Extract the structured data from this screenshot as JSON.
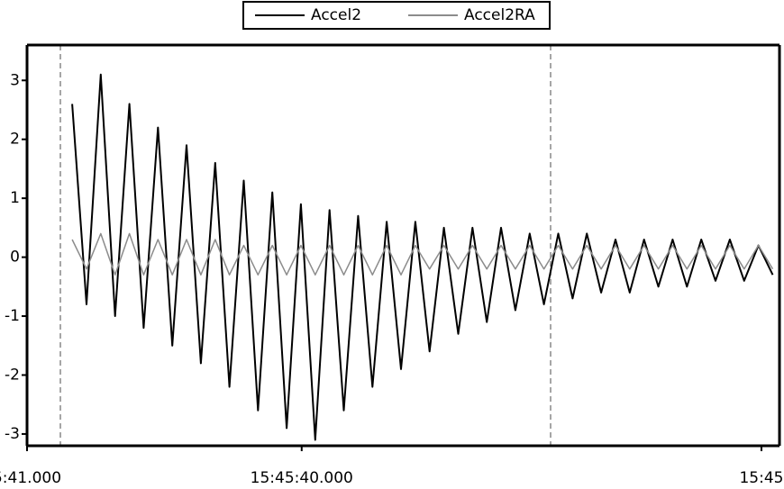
{
  "chart_data": {
    "type": "line",
    "x": [
      6,
      7.9,
      9.8,
      11.7,
      13.6,
      15.5,
      17.4,
      19.3,
      21.2,
      23.1,
      25,
      26.9,
      28.8,
      30.7,
      32.6,
      34.5,
      36.4,
      38.3,
      40.2,
      42.1,
      44,
      45.9,
      47.8,
      49.7,
      51.6,
      53.5,
      55.4,
      57.3,
      59.2,
      61.1,
      63,
      64.9,
      66.8,
      68.7,
      70.6,
      72.5,
      74.4,
      76.3,
      78.2,
      80.1,
      82,
      83.9,
      85.8,
      87.7,
      89.6,
      91.5,
      93.4,
      95.3,
      97.2,
      99.1
    ],
    "series": [
      {
        "name": "Accel2",
        "color": "#000000",
        "values": [
          2.6,
          -0.8,
          3.1,
          -1.0,
          2.6,
          -1.2,
          2.2,
          -1.5,
          1.9,
          -1.8,
          1.6,
          -2.2,
          1.3,
          -2.6,
          1.1,
          -2.9,
          0.9,
          -3.1,
          0.8,
          -2.6,
          0.7,
          -2.2,
          0.6,
          -1.9,
          0.6,
          -1.6,
          0.5,
          -1.3,
          0.5,
          -1.1,
          0.5,
          -0.9,
          0.4,
          -0.8,
          0.4,
          -0.7,
          0.4,
          -0.6,
          0.3,
          -0.6,
          0.3,
          -0.5,
          0.3,
          -0.5,
          0.3,
          -0.4,
          0.3,
          -0.4,
          0.2,
          -0.3
        ]
      },
      {
        "name": "Accel2RA",
        "color": "#8c8c8c",
        "values": [
          0.3,
          -0.2,
          0.4,
          -0.3,
          0.4,
          -0.3,
          0.3,
          -0.3,
          0.3,
          -0.3,
          0.3,
          -0.3,
          0.2,
          -0.3,
          0.2,
          -0.3,
          0.2,
          -0.3,
          0.2,
          -0.3,
          0.2,
          -0.3,
          0.2,
          -0.3,
          0.2,
          -0.2,
          0.2,
          -0.2,
          0.2,
          -0.2,
          0.2,
          -0.2,
          0.2,
          -0.2,
          0.2,
          -0.2,
          0.2,
          -0.2,
          0.2,
          -0.2,
          0.2,
          -0.2,
          0.2,
          -0.2,
          0.2,
          -0.2,
          0.2,
          -0.2,
          0.2,
          -0.2
        ]
      }
    ],
    "xlim": [
      0,
      100
    ],
    "xticks": [
      {
        "value": 0,
        "label": "5:41.000"
      },
      {
        "value": 36.5,
        "label": "15:45:40.000"
      },
      {
        "value": 97.6,
        "label": "15:45"
      }
    ],
    "ylim": [
      -3.2,
      3.6
    ],
    "yticks": [
      -3,
      -2,
      -1,
      0,
      1,
      2,
      3
    ],
    "legend": "top"
  }
}
